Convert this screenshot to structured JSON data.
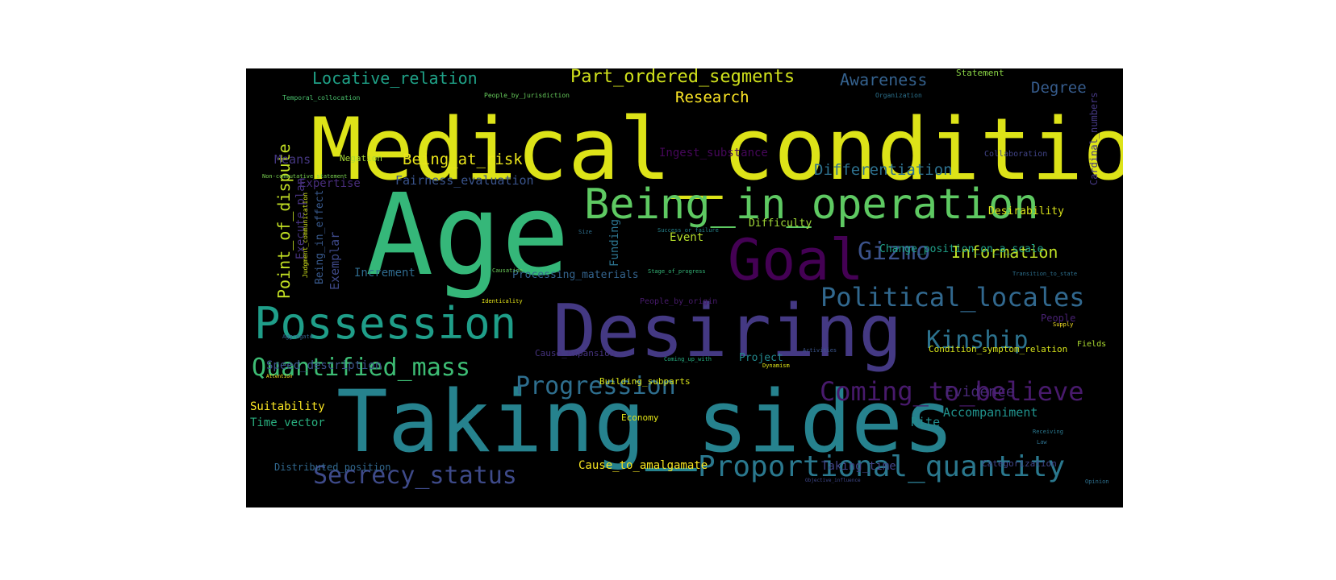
{
  "words": [
    {
      "text": "Medical_conditions",
      "color": "#dde318"
    },
    {
      "text": "Age",
      "color": "#35b779"
    },
    {
      "text": "Taking_sides",
      "color": "#26828e"
    },
    {
      "text": "Desiring",
      "color": "#443983"
    },
    {
      "text": "Being_in_operation",
      "color": "#5ec962"
    },
    {
      "text": "Goal",
      "color": "#440154"
    },
    {
      "text": "Possession",
      "color": "#1f9e89"
    },
    {
      "text": "Proportional_quantity",
      "color": "#2a788e"
    },
    {
      "text": "Political_locales",
      "color": "#31688e"
    },
    {
      "text": "Coming_to_believe",
      "color": "#481a6c"
    },
    {
      "text": "Secrecy_status",
      "color": "#3e4a89"
    },
    {
      "text": "Quantified_mass",
      "color": "#3dbc74"
    },
    {
      "text": "Progression",
      "color": "#2e6e8e"
    },
    {
      "text": "Kinship",
      "color": "#2c728e"
    },
    {
      "text": "Gizmo",
      "color": "#3b528b"
    },
    {
      "text": "Part_ordered_segments",
      "color": "#d0e11c"
    },
    {
      "text": "Locative_relation",
      "color": "#1fa187"
    },
    {
      "text": "Information",
      "color": "#bddf26"
    },
    {
      "text": "Point_of_dispute",
      "color": "#c2df23"
    },
    {
      "text": "Awareness",
      "color": "#34618d"
    },
    {
      "text": "Research",
      "color": "#fde725"
    },
    {
      "text": "Being_at_risk",
      "color": "#eae51a"
    },
    {
      "text": "Differentiation",
      "color": "#2d708e"
    },
    {
      "text": "Degree",
      "color": "#365c8d"
    },
    {
      "text": "Evidence",
      "color": "#482878"
    },
    {
      "text": "Accompaniment",
      "color": "#20928c"
    },
    {
      "text": "Rite",
      "color": "#228c8d"
    },
    {
      "text": "Change_position_on_a_scale",
      "color": "#1fa088"
    },
    {
      "text": "Fairness_evaluation",
      "color": "#3a548c"
    },
    {
      "text": "Ingest_substance",
      "color": "#46075a"
    },
    {
      "text": "Expertise",
      "color": "#472c7a"
    },
    {
      "text": "Means",
      "color": "#453781"
    },
    {
      "text": "Negation",
      "color": "#a8db34"
    },
    {
      "text": "Execute_plan",
      "color": "#46327e"
    },
    {
      "text": "Exemplar",
      "color": "#3e4989"
    },
    {
      "text": "Being_in_effect",
      "color": "#38598c"
    },
    {
      "text": "Increment",
      "color": "#2f6b8e"
    },
    {
      "text": "Processing_materials",
      "color": "#33638d"
    },
    {
      "text": "Funding",
      "color": "#2c738e"
    },
    {
      "text": "Event",
      "color": "#b5de2b"
    },
    {
      "text": "Difficulty",
      "color": "#a2da37"
    },
    {
      "text": "Desirability",
      "color": "#dae319"
    },
    {
      "text": "Suitability",
      "color": "#fbe723"
    },
    {
      "text": "Time_vector",
      "color": "#29af7f"
    },
    {
      "text": "Speed_description",
      "color": "#3b528b"
    },
    {
      "text": "Cause_to_amalgamate",
      "color": "#f8e621"
    },
    {
      "text": "Taking_time",
      "color": "#414487"
    },
    {
      "text": "Distributed_position",
      "color": "#31688e"
    },
    {
      "text": "Economy",
      "color": "#e2e418"
    },
    {
      "text": "Building_subparts",
      "color": "#d8e219"
    },
    {
      "text": "Project",
      "color": "#23898e"
    },
    {
      "text": "Condition_symptom_relation",
      "color": "#d5e21a"
    },
    {
      "text": "Categorization",
      "color": "#404688"
    },
    {
      "text": "Statement",
      "color": "#8bd646"
    },
    {
      "text": "Collaboration",
      "color": "#414487"
    },
    {
      "text": "Cardinal_numbers",
      "color": "#453882"
    },
    {
      "text": "Cause_expansion",
      "color": "#46337f"
    },
    {
      "text": "People_by_origin",
      "color": "#481b6d"
    },
    {
      "text": "People",
      "color": "#482173"
    },
    {
      "text": "Fields",
      "color": "#addc30"
    },
    {
      "text": "Temporal_collocation",
      "color": "#4ac16d"
    },
    {
      "text": "People_by_jurisdiction",
      "color": "#67cc5c"
    },
    {
      "text": "Organization",
      "color": "#2c728e"
    },
    {
      "text": "Non-commutative_statement",
      "color": "#7ad151"
    },
    {
      "text": "Judgment_communication",
      "color": "#d2e21b"
    },
    {
      "text": "Causation",
      "color": "#6ccd5a"
    },
    {
      "text": "Stage_of_progress",
      "color": "#35b779"
    },
    {
      "text": "Success_or_failure",
      "color": "#25848e"
    },
    {
      "text": "Size",
      "color": "#2e6f8e"
    },
    {
      "text": "Transition_to_state",
      "color": "#2d708e"
    },
    {
      "text": "Identicality",
      "color": "#e5e419"
    },
    {
      "text": "Aggregate",
      "color": "#32648e"
    },
    {
      "text": "Attention",
      "color": "#fde725"
    },
    {
      "text": "Coming_up_with",
      "color": "#26ad81"
    },
    {
      "text": "Activities",
      "color": "#3a548c"
    },
    {
      "text": "Dynamism",
      "color": "#dde318"
    },
    {
      "text": "Supply",
      "color": "#fde725"
    },
    {
      "text": "Receiving",
      "color": "#2a788e"
    },
    {
      "text": "Law",
      "color": "#2d718e"
    },
    {
      "text": "Opinion",
      "color": "#2d708e"
    },
    {
      "text": "Objective_influence",
      "color": "#3f4788"
    }
  ]
}
